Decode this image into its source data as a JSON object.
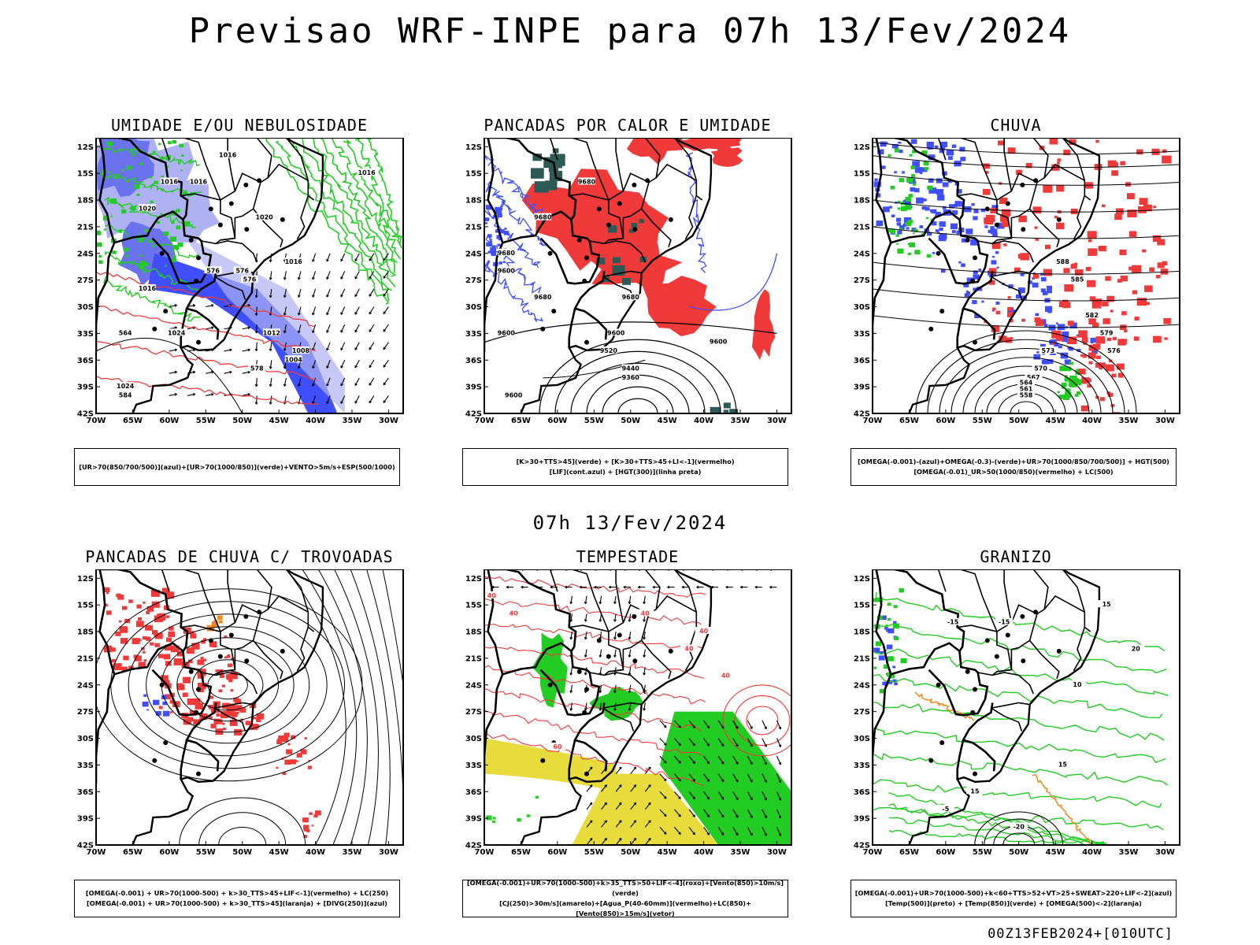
{
  "title": "Previsao WRF-INPE  para 07h 13/Fev/2024",
  "mid_title": "07h 13/Fev/2024",
  "footer": "00Z13FEB2024+[010UTC]",
  "axes": {
    "lat_labels": [
      "12S",
      "15S",
      "18S",
      "21S",
      "24S",
      "27S",
      "30S",
      "33S",
      "36S",
      "39S",
      "42S"
    ],
    "lon_labels": [
      "70W",
      "65W",
      "60W",
      "55W",
      "50W",
      "45W",
      "40W",
      "35W",
      "30W"
    ]
  },
  "colors": {
    "blue": "#3f4fff",
    "light_blue": "#aeb2f2",
    "mid_blue": "#6b72ee",
    "green": "#22cc22",
    "red": "#f03a3a",
    "dark_teal": "#2d5a55",
    "yellow": "#e8dc3c",
    "orange": "#ee8820",
    "black": "#000000"
  },
  "panels": [
    {
      "id": "umidade",
      "title": "UMIDADE E/OU NEBULOSIDADE",
      "legend": [
        "[UR>70(850/700/500)](azul)+[UR>70(1000/850)](verde)+VENTO>5m/s+ESP(500/1000)"
      ],
      "contour_labels": [
        "1016",
        "1016",
        "1016",
        "1016",
        "1016",
        "1020",
        "1020",
        "1024",
        "1024",
        "1016",
        "1012",
        "1008",
        "1004",
        "576",
        "576",
        "576",
        "578",
        "564",
        "584"
      ]
    },
    {
      "id": "pancadas_calor",
      "title": "PANCADAS POR CALOR E UMIDADE",
      "legend": [
        "[K>30+TTS>45](verde) + [K>30+TTS>45+LI<-1](vermelho)",
        "[LIF](cont.azul) + [HGT(300)](linha preta)"
      ],
      "contour_labels": [
        "9680",
        "9680",
        "9680",
        "9600",
        "9600",
        "9680",
        "9600",
        "9600",
        "9520",
        "9440",
        "9360",
        "9600",
        "9680"
      ]
    },
    {
      "id": "chuva",
      "title": "CHUVA",
      "legend": [
        "[OMEGA(-0.001)-(azul)+OMEGA(-0.3)-(verde)+UR>70(1000/850/700/500)] + HGT(500)",
        "[OMEGA(-0.01)_UR>50(1000/850)(vermelho) + LC(500)"
      ],
      "contour_labels": [
        "588",
        "585",
        "582",
        "579",
        "576",
        "573",
        "570",
        "567",
        "564",
        "561",
        "558"
      ]
    },
    {
      "id": "trovoadas",
      "title": "PANCADAS DE CHUVA C/ TROVOADAS",
      "legend": [
        "[OMEGA(-0.001) + UR>70(1000-500) + k>30_TTS>45+LIF<-1](vermelho) + LC(250)",
        "[OMEGA(-0.001) + UR>70(1000-500) + k>30_TTS>45](laranja) + [DIVG(250)](azul)"
      ]
    },
    {
      "id": "tempestade",
      "title": "TEMPESTADE",
      "legend": [
        "[OMEGA(-0.001)+UR>70(1000-500)+k>35_TTS>50+LIF<-4](roxo)+[Vento(850)>10m/s](verde)",
        "[CJ(250)>30m/s](amarelo)+[Agua_P(40-60mm)](vermelho)+LC(850)+[Vento(850)>15m/s](vetor)"
      ],
      "contour_labels": [
        "40",
        "40",
        "40",
        "40",
        "40",
        "60",
        "40"
      ]
    },
    {
      "id": "granizo",
      "title": "GRANIZO",
      "legend": [
        "[OMEGA(-0.001)+UR>70(1000-500)+k<60+TTS>52+VT>25+SWEAT>220+LIF<-2](azul)",
        "[Temp(500)](preto) + [Temp(850)](verde) + [OMEGA(500)<-2](laranja)"
      ],
      "contour_labels": [
        "-15",
        "-15",
        "10",
        "15",
        "15",
        "15",
        "20",
        "-20",
        "-5"
      ]
    }
  ]
}
